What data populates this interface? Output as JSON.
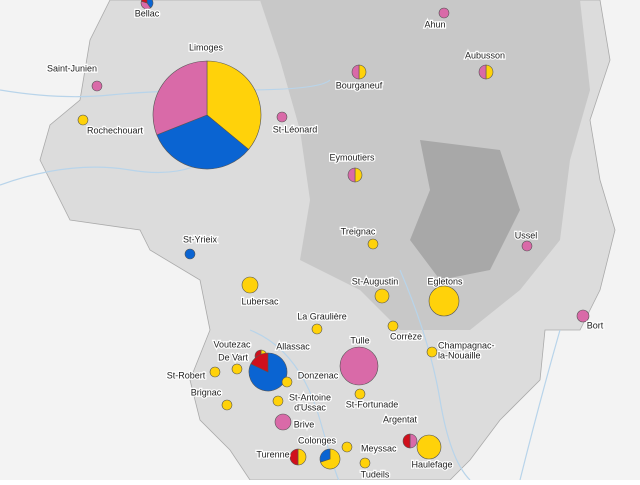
{
  "colors": [
    "#ffd20a",
    "#0a64d2",
    "#d96aa8",
    "#d0101c"
  ],
  "places": [
    {
      "lines": [
        "Bellac"
      ],
      "shares": [
        0,
        40,
        40,
        20
      ]
    },
    {
      "lines": [
        "Ahun"
      ],
      "shares": [
        0,
        0,
        100,
        0
      ]
    },
    {
      "lines": [
        "Saint-Junien"
      ],
      "shares": [
        0,
        0,
        100,
        0
      ]
    },
    {
      "lines": [
        "Limoges"
      ],
      "shares": [
        36,
        33,
        31,
        0
      ]
    },
    {
      "lines": [
        "Rochechouart"
      ],
      "shares": [
        100,
        0,
        0,
        0
      ]
    },
    {
      "lines": [
        "St-Léonard"
      ],
      "shares": [
        0,
        0,
        100,
        0
      ]
    },
    {
      "lines": [
        "Bourganeuf"
      ],
      "shares": [
        50,
        0,
        50,
        0
      ]
    },
    {
      "lines": [
        "Aubusson"
      ],
      "shares": [
        50,
        0,
        50,
        0
      ]
    },
    {
      "lines": [
        "Eymoutiers"
      ],
      "shares": [
        50,
        0,
        50,
        0
      ]
    },
    {
      "lines": [
        "Treignac"
      ],
      "shares": [
        100,
        0,
        0,
        0
      ]
    },
    {
      "lines": [
        "Ussel"
      ],
      "shares": [
        0,
        0,
        100,
        0
      ]
    },
    {
      "lines": [
        "St-Yrieix"
      ],
      "shares": [
        0,
        100,
        0,
        0
      ]
    },
    {
      "lines": [
        "St-Augustin"
      ],
      "shares": [
        100,
        0,
        0,
        0
      ]
    },
    {
      "lines": [
        "Egletons"
      ],
      "shares": [
        100,
        0,
        0,
        0
      ]
    },
    {
      "lines": [
        "Lubersac"
      ],
      "shares": [
        100,
        0,
        0,
        0
      ]
    },
    {
      "lines": [
        "La Graulière"
      ],
      "shares": [
        100,
        0,
        0,
        0
      ]
    },
    {
      "lines": [
        "Corrèze"
      ],
      "shares": [
        100,
        0,
        0,
        0
      ]
    },
    {
      "lines": [
        "Bort"
      ],
      "shares": [
        0,
        0,
        100,
        0
      ]
    },
    {
      "lines": [
        "Tulle"
      ],
      "shares": [
        0,
        0,
        100,
        0
      ]
    },
    {
      "lines": [
        "Champagnac-",
        "la-Nouaille"
      ],
      "shares": [
        100,
        0,
        0,
        0
      ]
    },
    {
      "lines": [
        "Voutezac"
      ],
      "shares": [
        50,
        0,
        0,
        50
      ]
    },
    {
      "lines": [
        "Allassac"
      ],
      "shares": [
        0,
        82,
        0,
        18
      ]
    },
    {
      "lines": [
        "De Vart"
      ],
      "shares": [
        100,
        0,
        0,
        0
      ]
    },
    {
      "lines": [
        "Donzenac"
      ],
      "shares": [
        100,
        0,
        0,
        0
      ]
    },
    {
      "lines": [
        "St-Robert"
      ],
      "shares": [
        100,
        0,
        0,
        0
      ]
    },
    {
      "lines": [
        "Brignac"
      ],
      "shares": [
        100,
        0,
        0,
        0
      ]
    },
    {
      "lines": [
        "St-Antoine",
        "d'Ussac"
      ],
      "shares": [
        100,
        0,
        0,
        0
      ]
    },
    {
      "lines": [
        "St-Fortunade"
      ],
      "shares": [
        100,
        0,
        0,
        0
      ]
    },
    {
      "lines": [
        "Brive"
      ],
      "shares": [
        0,
        0,
        100,
        0
      ]
    },
    {
      "lines": [
        "Argentat"
      ],
      "shares": [
        0,
        0,
        50,
        50
      ]
    },
    {
      "lines": [
        "Haulefage"
      ],
      "shares": [
        100,
        0,
        0,
        0
      ]
    },
    {
      "lines": [
        "Colonges"
      ],
      "shares": [
        70,
        30,
        0,
        0
      ]
    },
    {
      "lines": [
        "Meyssac"
      ],
      "shares": [
        100,
        0,
        0,
        0
      ]
    },
    {
      "lines": [
        "Turenne"
      ],
      "shares": [
        50,
        0,
        0,
        50
      ]
    },
    {
      "lines": [
        "Tudeils"
      ],
      "shares": [
        100,
        0,
        0,
        0
      ]
    }
  ]
}
